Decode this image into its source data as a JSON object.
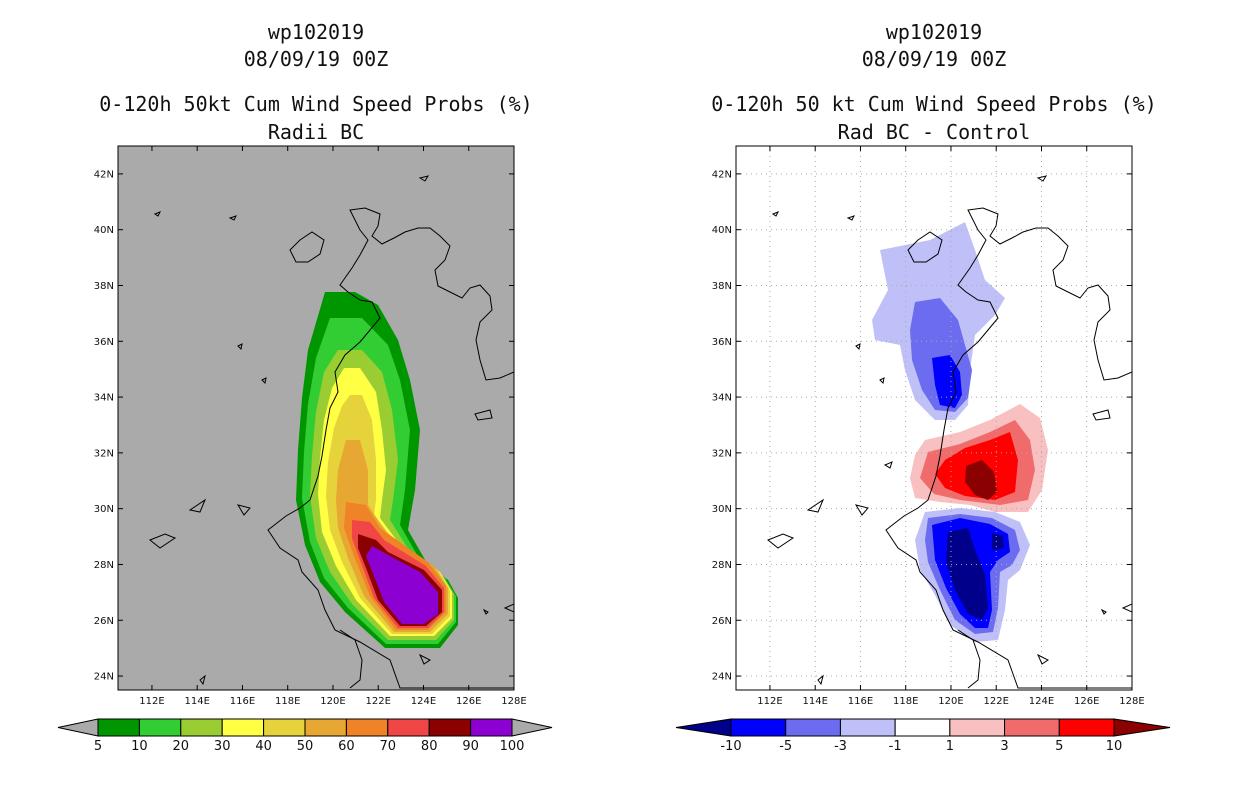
{
  "panels": [
    {
      "id": "left",
      "title_line1": "wp102019",
      "title_line2": "08/09/19 00Z",
      "title_line3": "0-120h 50kt Cum Wind Speed Probs (%)",
      "title_line4": "Radii BC"
    },
    {
      "id": "right",
      "title_line1": "wp102019",
      "title_line2": "08/09/19 00Z",
      "title_line3": "0-120h 50 kt Cum Wind Speed Probs (%)",
      "title_line4": "Rad BC - Control"
    }
  ],
  "chart_data": [
    {
      "type": "heatmap",
      "title": "0-120h 50kt Cum Wind Speed Probs (%) - Radii BC",
      "x_ticks": [
        "112E",
        "114E",
        "116E",
        "118E",
        "120E",
        "122E",
        "124E",
        "126E",
        "128E"
      ],
      "y_ticks": [
        "24N",
        "26N",
        "28N",
        "30N",
        "32N",
        "34N",
        "36N",
        "38N",
        "40N",
        "42N"
      ],
      "xlim": [
        110.5,
        128
      ],
      "ylim": [
        23.5,
        43
      ],
      "colorbar_labels": [
        "5",
        "10",
        "20",
        "30",
        "40",
        "50",
        "60",
        "70",
        "80",
        "90",
        "100"
      ],
      "colorbar_colors": [
        "#009600",
        "#32cd32",
        "#9acd32",
        "#ffff44",
        "#e6d23a",
        "#e6a832",
        "#f08228",
        "#f04646",
        "#8b0000",
        "#8c00d2"
      ],
      "background": "#aaaaaa"
    },
    {
      "type": "heatmap",
      "title": "0-120h 50 kt Cum Wind Speed Probs (%) - Rad BC - Control",
      "x_ticks": [
        "112E",
        "114E",
        "116E",
        "118E",
        "120E",
        "122E",
        "124E",
        "126E",
        "128E"
      ],
      "y_ticks": [
        "24N",
        "26N",
        "28N",
        "30N",
        "32N",
        "34N",
        "36N",
        "38N",
        "40N",
        "42N"
      ],
      "xlim": [
        110.5,
        128
      ],
      "ylim": [
        23.5,
        43
      ],
      "colorbar_labels": [
        "-10",
        "-5",
        "-3",
        "-1",
        "1",
        "3",
        "5",
        "10"
      ],
      "colorbar_colors": [
        "#00008b",
        "#0000ff",
        "#6c6cf0",
        "#c0c0f8",
        "#ffffff",
        "#f8c0c0",
        "#f06c6c",
        "#ff0000",
        "#8b0000"
      ],
      "background": "#ffffff"
    }
  ]
}
